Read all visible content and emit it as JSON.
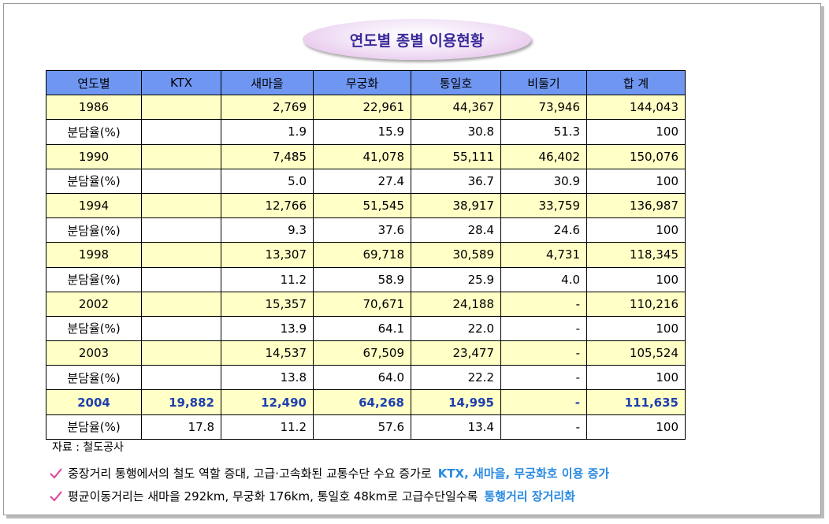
{
  "title": "연도별 종별 이용현황",
  "table": {
    "header": [
      "연도별",
      "KTX",
      "새마을",
      "무궁화",
      "통일호",
      "비둘기",
      "합 계"
    ],
    "rows": [
      [
        "1986",
        null,
        "2,769",
        "22,961",
        "44,367",
        "73,946",
        "144,043"
      ],
      [
        "분담율(%)",
        null,
        "1.9",
        "15.9",
        "30.8",
        "51.3",
        "100"
      ],
      [
        "1990",
        null,
        "7,485",
        "41,078",
        "55,111",
        "46,402",
        "150,076"
      ],
      [
        "분담율(%)",
        null,
        "5.0",
        "27.4",
        "36.7",
        "30.9",
        "100"
      ],
      [
        "1994",
        null,
        "12,766",
        "51,545",
        "38,917",
        "33,759",
        "136,987"
      ],
      [
        "분담율(%)",
        null,
        "9.3",
        "37.6",
        "28.4",
        "24.6",
        "100"
      ],
      [
        "1998",
        null,
        "13,307",
        "69,718",
        "30,589",
        "4,731",
        "118,345"
      ],
      [
        "분담율(%)",
        null,
        "11.2",
        "58.9",
        "25.9",
        "4.0",
        "100"
      ],
      [
        "2002",
        null,
        "15,357",
        "70,671",
        "24,188",
        "-",
        "110,216"
      ],
      [
        "분담율(%)",
        null,
        "13.9",
        "64.1",
        "22.0",
        "-",
        "100"
      ],
      [
        "2003",
        null,
        "14,537",
        "67,509",
        "23,477",
        "-",
        "105,524"
      ],
      [
        "분담율(%)",
        null,
        "13.8",
        "64.0",
        "22.2",
        "-",
        "100"
      ],
      [
        "2004",
        "19,882",
        "12,490",
        "64,268",
        "14,995",
        "-",
        "111,635"
      ],
      [
        "분담율(%)",
        "17.8",
        "11.2",
        "57.6",
        "13.4",
        "-",
        "100"
      ]
    ]
  },
  "source": "자료 : 철도공사",
  "notes": [
    {
      "text": "중장거리 통행에서의 철도 역할 증대, 고급·고속화된 교통수단 수요 증가로",
      "highlight": "KTX, 새마을, 무궁화호 이용 증가"
    },
    {
      "text": "평균이동거리는 새마을 292km, 무궁화 176km, 통일호 48km로 고급수단일수록",
      "highlight": "통행거리 장거리화"
    }
  ]
}
